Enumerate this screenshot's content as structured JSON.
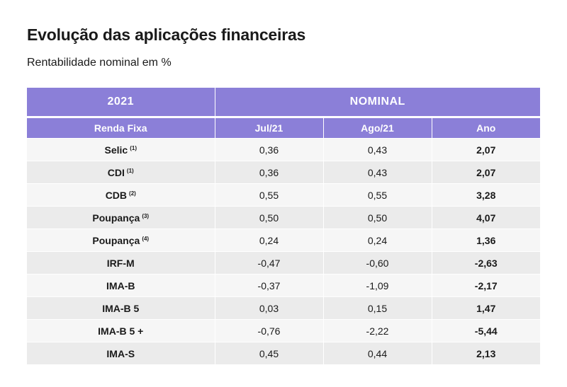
{
  "title": "Evolução das aplicações financeiras",
  "subtitle": "Rentabilidade nominal em %",
  "table": {
    "year_header": "2021",
    "group_header": "NOMINAL",
    "columns": [
      "Renda Fixa",
      "Jul/21",
      "Ago/21",
      "Ano"
    ],
    "rows": [
      {
        "label": "Selic",
        "note": "(1)",
        "jul": "0,36",
        "ago": "0,43",
        "ano": "2,07"
      },
      {
        "label": "CDI",
        "note": "(1)",
        "jul": "0,36",
        "ago": "0,43",
        "ano": "2,07"
      },
      {
        "label": "CDB",
        "note": "(2)",
        "jul": "0,55",
        "ago": "0,55",
        "ano": "3,28"
      },
      {
        "label": "Poupança",
        "note": "(3)",
        "jul": "0,50",
        "ago": "0,50",
        "ano": "4,07"
      },
      {
        "label": "Poupança",
        "note": "(4)",
        "jul": "0,24",
        "ago": "0,24",
        "ano": "1,36"
      },
      {
        "label": "IRF-M",
        "note": "",
        "jul": "-0,47",
        "ago": "-0,60",
        "ano": "-2,63"
      },
      {
        "label": "IMA-B",
        "note": "",
        "jul": "-0,37",
        "ago": "-1,09",
        "ano": "-2,17"
      },
      {
        "label": "IMA-B 5",
        "note": "",
        "jul": "0,03",
        "ago": "0,15",
        "ano": "1,47"
      },
      {
        "label": "IMA-B 5 +",
        "note": "",
        "jul": "-0,76",
        "ago": "-2,22",
        "ano": "-5,44"
      },
      {
        "label": "IMA-S",
        "note": "",
        "jul": "0,45",
        "ago": "0,44",
        "ano": "2,13"
      }
    ]
  },
  "colors": {
    "header_bg": "#8b7fd8",
    "row_light": "#f6f6f6",
    "row_dark": "#ebebeb"
  }
}
